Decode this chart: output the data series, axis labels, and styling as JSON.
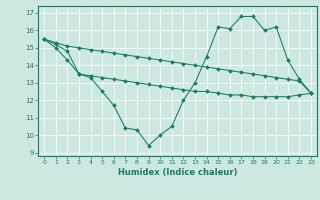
{
  "xlabel": "Humidex (Indice chaleur)",
  "xlim": [
    -0.5,
    23.5
  ],
  "ylim": [
    8.8,
    17.4
  ],
  "yticks": [
    9,
    10,
    11,
    12,
    13,
    14,
    15,
    16,
    17
  ],
  "xticks": [
    0,
    1,
    2,
    3,
    4,
    5,
    6,
    7,
    8,
    9,
    10,
    11,
    12,
    13,
    14,
    15,
    16,
    17,
    18,
    19,
    20,
    21,
    22,
    23
  ],
  "bg_color": "#cce8e0",
  "grid_color": "#ffffff",
  "line_color": "#1a7a6a",
  "line1_y": [
    15.5,
    15.0,
    14.3,
    13.5,
    13.3,
    12.5,
    11.7,
    10.4,
    10.3,
    9.4,
    10.0,
    10.5,
    12.0,
    13.0,
    14.5,
    16.2,
    16.1,
    16.8,
    16.8,
    16.0,
    16.2,
    14.3,
    13.2,
    12.4
  ],
  "line2_y": [
    15.5,
    15.3,
    15.1,
    15.0,
    14.9,
    14.8,
    14.7,
    14.6,
    14.5,
    14.4,
    14.3,
    14.2,
    14.1,
    14.0,
    13.9,
    13.8,
    13.7,
    13.6,
    13.5,
    13.4,
    13.3,
    13.2,
    13.1,
    12.4
  ],
  "line3_y": [
    15.5,
    15.2,
    14.8,
    13.5,
    13.4,
    13.3,
    13.2,
    13.1,
    13.0,
    12.9,
    12.8,
    12.7,
    12.6,
    12.5,
    12.5,
    12.4,
    12.3,
    12.3,
    12.2,
    12.2,
    12.2,
    12.2,
    12.3,
    12.4
  ]
}
